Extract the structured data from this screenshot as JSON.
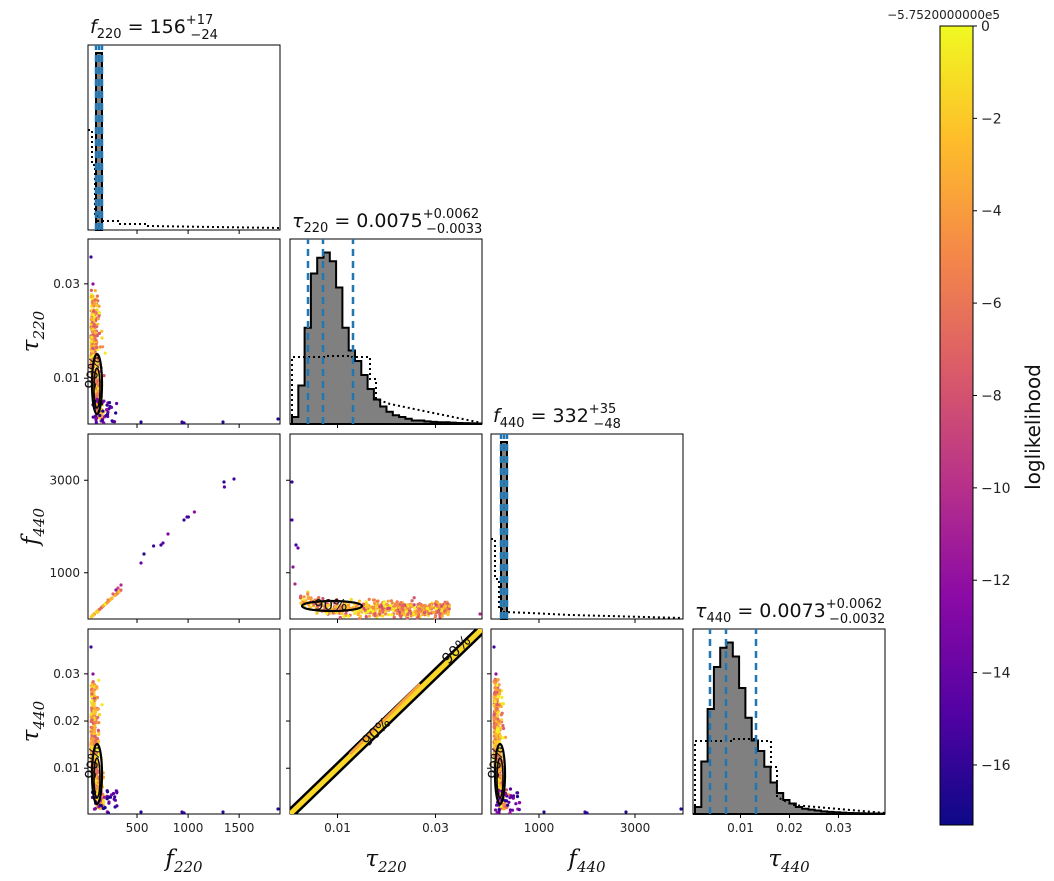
{
  "chart_data": {
    "type": "corner",
    "parameters": [
      {
        "id": "f220",
        "symbol": "f",
        "sub": "220",
        "median": "156",
        "plus": "+17",
        "minus": "−24"
      },
      {
        "id": "tau220",
        "symbol": "τ",
        "sub": "220",
        "median": "0.0075",
        "plus": "+0.0062",
        "minus": "−0.0033"
      },
      {
        "id": "f440",
        "symbol": "f",
        "sub": "440",
        "median": "332",
        "plus": "+35",
        "minus": "−48"
      },
      {
        "id": "tau440",
        "symbol": "τ",
        "sub": "440",
        "median": "0.0073",
        "plus": "+0.0062",
        "minus": "−0.0032"
      }
    ],
    "x_axes": {
      "f220": {
        "range": [
          20,
          1900
        ],
        "ticks": [
          500,
          1000,
          1500
        ],
        "tick_labels": [
          "500",
          "1000",
          "1500"
        ]
      },
      "tau220": {
        "range": [
          0.0003,
          0.0395
        ],
        "ticks": [
          0.01,
          0.03
        ],
        "tick_labels": [
          "0.01",
          "0.03"
        ]
      },
      "f440": {
        "range": [
          0,
          4000
        ],
        "ticks": [
          1000,
          3000
        ],
        "tick_labels": [
          "1000",
          "3000"
        ]
      },
      "tau440": {
        "range": [
          0.0003,
          0.0395
        ],
        "ticks": [
          0.01,
          0.02,
          0.03
        ],
        "tick_labels": [
          "0.01",
          "0.02",
          "0.03"
        ]
      }
    },
    "y_axes": {
      "tau220": {
        "range": [
          0.0003,
          0.0395
        ],
        "ticks": [
          0.01,
          0.03
        ],
        "tick_labels": [
          "0.01",
          "0.03"
        ]
      },
      "f440": {
        "range": [
          0,
          4000
        ],
        "ticks": [
          1000,
          3000
        ],
        "tick_labels": [
          "1000",
          "3000"
        ]
      },
      "tau440": {
        "range": [
          0.0003,
          0.0395
        ],
        "ticks": [
          0.01,
          0.02,
          0.03
        ],
        "tick_labels": [
          "0.01",
          "0.02",
          "0.03"
        ]
      }
    },
    "contour_label": "90%",
    "colorbar": {
      "label": "loglikelihood",
      "offset_label": "−5.7520000000e5",
      "range": [
        -17.3,
        0
      ],
      "ticks": [
        0,
        -2,
        -4,
        -6,
        -8,
        -10,
        -12,
        -14,
        -16
      ],
      "tick_labels": [
        "0",
        "−2",
        "−4",
        "−6",
        "−8",
        "−10",
        "−12",
        "−14",
        "−16"
      ],
      "colormap": "plasma"
    },
    "style": {
      "hist_fill": "#808080",
      "hist_edge": "#000000",
      "quantile_line": "#1f77b4",
      "prior_line": "#000000",
      "cmap_stops": [
        "#0d0887",
        "#5302a3",
        "#8b0aa5",
        "#b83289",
        "#db5c68",
        "#f48849",
        "#febd2a",
        "#f0f921"
      ]
    }
  }
}
